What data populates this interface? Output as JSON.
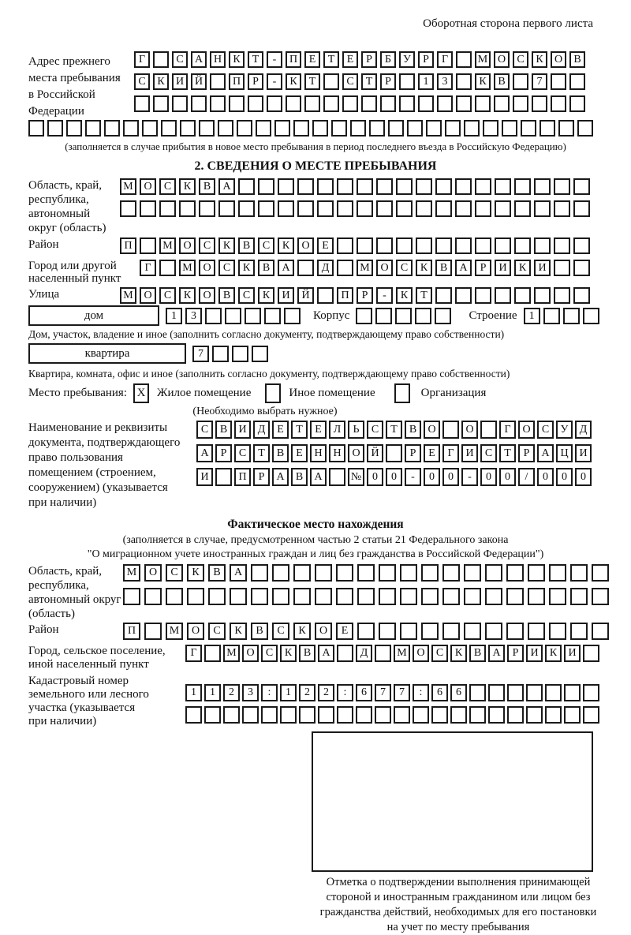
{
  "header": {
    "note": "Оборотная сторона первого листа"
  },
  "prev_address": {
    "label_lines": [
      "Адрес прежнего",
      "места пребывания",
      "в Российской",
      "Федерации"
    ],
    "rows": [
      "Г САНКТ-ПЕТЕРБУРГ МОСКОВ",
      "СКИЙ ПР-КТ СТР 13 КВ 7  ",
      "                        "
    ],
    "full_row": "                              ",
    "footnote": "(заполняется в случае прибытия в новое место пребывания в период последнего въезда в Российскую Федерацию)"
  },
  "section2": {
    "title": "2. СВЕДЕНИЯ О МЕСТЕ ПРЕБЫВАНИЯ",
    "oblast": {
      "label_lines": [
        "Область, край,",
        "республика,",
        "автономный",
        "округ (область)"
      ],
      "rows": [
        "МОСКВА                  ",
        "                        "
      ]
    },
    "rayon": {
      "label": "Район",
      "row": "П МОСКВСКОЕ             "
    },
    "gorod": {
      "label_lines": [
        "Город или другой",
        "населенный пункт"
      ],
      "row": "Г МОСКВА Д МОСКВАРИКИ  "
    },
    "ulitsa": {
      "label": "Улица",
      "row": "МОСКОВСКИЙ ПР-КТ        "
    },
    "dom": {
      "box_label": "дом",
      "cells": "13     ",
      "korpus_label": "Корпус",
      "korpus_cells": "     ",
      "stroenie_label": "Строение",
      "stroenie_cells": "1   ",
      "footnote": "Дом, участок, владение и иное (заполнить согласно документу, подтверждающему право собственности)"
    },
    "kvartira": {
      "box_label": "квартира",
      "cells": "7   ",
      "footnote": "Квартира, комната, офис и иное (заполнить согласно документу, подтверждающему право собственности)"
    },
    "mesto": {
      "label": "Место пребывания:",
      "zhiloe_checked": "X",
      "zhiloe_label": "Жилое помещение",
      "inoe_checked": "",
      "inoe_label": "Иное помещение",
      "org_checked": "",
      "org_label": "Организация",
      "hint": "(Необходимо выбрать нужное)"
    },
    "doc": {
      "label_lines": [
        "Наименование и реквизиты",
        "документа, подтверждающего",
        "право пользования",
        "помещением (строением,",
        "сооружением) (указывается",
        "при наличии)"
      ],
      "rows": [
        "СВИДЕТЕЛЬСТВО О ГОСУД",
        "АРСТВЕННОЙ РЕГИСТРАЦИ",
        "И ПРАВА №00-00-00/000"
      ]
    }
  },
  "fact": {
    "title": "Фактическое место нахождения",
    "subtitle_lines": [
      "(заполняется в случае, предусмотренном частью 2 статьи 21 Федерального закона",
      "\"О миграционном учете иностранных граждан и лиц без гражданства в Российской Федерации\")"
    ],
    "oblast": {
      "label_lines": [
        "Область, край,",
        "республика,",
        "автономный округ",
        "(область)"
      ],
      "rows": [
        "МОСКВА                 ",
        "                       "
      ]
    },
    "rayon": {
      "label": "Район",
      "row": "П МОСКВСКОЕ            "
    },
    "gorod": {
      "label_lines": [
        "Город, сельское поселение,",
        "иной населенный пункт"
      ],
      "row": "Г МОСКВА Д МОСКВАРИКИ "
    },
    "kadastr": {
      "label_lines": [
        "Кадастровый номер",
        "земельного или лесного",
        "участка (указывается",
        "при наличии)"
      ],
      "rows": [
        "1123:122:677:66       ",
        "                      "
      ]
    },
    "stamp_caption_lines": [
      "Отметка о подтверждении выполнения принимающей",
      "стороной и иностранным гражданином или лицом без",
      "гражданства действий, необходимых для его постановки",
      "на учет по месту пребывания"
    ]
  }
}
